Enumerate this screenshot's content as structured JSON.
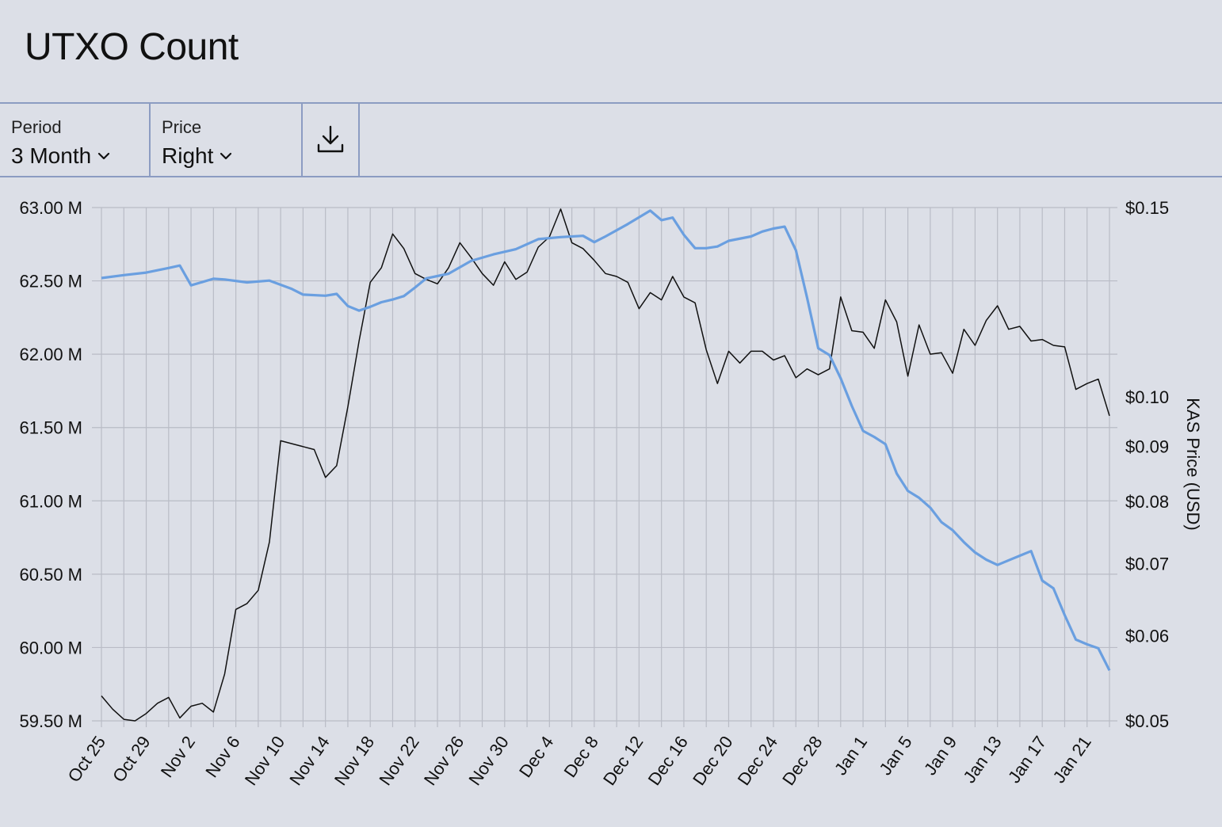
{
  "page_title": "UTXO Count",
  "controls": {
    "period": {
      "label": "Period",
      "value": "3 Month",
      "icon": "chevron-down-icon"
    },
    "price": {
      "label": "Price",
      "value": "Right",
      "icon": "chevron-down-icon"
    },
    "download": {
      "icon": "download-icon"
    }
  },
  "colors": {
    "background": "#dcdfe7",
    "border": "#8c9cc2",
    "utxo_line": "#111111",
    "price_line": "#6a9fe0",
    "grid": "#b9bcc6"
  },
  "chart_data": {
    "type": "line",
    "title": "",
    "xlabel": "",
    "ylabel": "",
    "y2label": "KAS Price (USD)",
    "x_tick_labels": [
      "Oct 25",
      "Oct 29",
      "Nov 2",
      "Nov 6",
      "Nov 10",
      "Nov 14",
      "Nov 18",
      "Nov 22",
      "Nov 26",
      "Nov 30",
      "Dec 4",
      "Dec 8",
      "Dec 12",
      "Dec 16",
      "Dec 20",
      "Dec 24",
      "Dec 28",
      "Jan 1",
      "Jan 5",
      "Jan 9",
      "Jan 13",
      "Jan 17",
      "Jan 21"
    ],
    "y_ticks": [
      "59.50 M",
      "60.00 M",
      "60.50 M",
      "61.00 M",
      "61.50 M",
      "62.00 M",
      "62.50 M",
      "63.00 M"
    ],
    "y_tick_values": [
      59.5,
      60.0,
      60.5,
      61.0,
      61.5,
      62.0,
      62.5,
      63.0
    ],
    "y_unit": "M",
    "ylim": [
      59.5,
      63.0
    ],
    "y2_scale": "log",
    "y2_ticks": [
      "$0.05",
      "$0.06",
      "$0.07",
      "$0.08",
      "$0.09",
      "$0.10",
      "$0.15"
    ],
    "y2_tick_values": [
      0.05,
      0.06,
      0.07,
      0.08,
      0.09,
      0.1,
      0.15
    ],
    "y2lim": [
      0.05,
      0.15
    ],
    "grid": true,
    "x_start": "Oct 25",
    "x_end": "Jan 23",
    "series": [
      {
        "axis": "left",
        "color": "#111111",
        "x": [
          "Oct 25",
          "Oct 26",
          "Oct 27",
          "Oct 28",
          "Oct 29",
          "Oct 30",
          "Oct 31",
          "Nov 1",
          "Nov 2",
          "Nov 3",
          "Nov 4",
          "Nov 5",
          "Nov 6",
          "Nov 7",
          "Nov 8",
          "Nov 9",
          "Nov 10",
          "Nov 11",
          "Nov 12",
          "Nov 13",
          "Nov 14",
          "Nov 15",
          "Nov 16",
          "Nov 17",
          "Nov 18",
          "Nov 19",
          "Nov 20",
          "Nov 21",
          "Nov 22",
          "Nov 23",
          "Nov 24",
          "Nov 25",
          "Nov 26",
          "Nov 27",
          "Nov 28",
          "Nov 29",
          "Nov 30",
          "Dec 1",
          "Dec 2",
          "Dec 3",
          "Dec 4",
          "Dec 5",
          "Dec 6",
          "Dec 7",
          "Dec 8",
          "Dec 9",
          "Dec 10",
          "Dec 11",
          "Dec 12",
          "Dec 13",
          "Dec 14",
          "Dec 15",
          "Dec 16",
          "Dec 17",
          "Dec 18",
          "Dec 19",
          "Dec 20",
          "Dec 21",
          "Dec 22",
          "Dec 23",
          "Dec 24",
          "Dec 25",
          "Dec 26",
          "Dec 27",
          "Dec 28",
          "Dec 29",
          "Dec 30",
          "Dec 31",
          "Jan 1",
          "Jan 2",
          "Jan 3",
          "Jan 4",
          "Jan 5",
          "Jan 6",
          "Jan 7",
          "Jan 8",
          "Jan 9",
          "Jan 10",
          "Jan 11",
          "Jan 12",
          "Jan 13",
          "Jan 14",
          "Jan 15",
          "Jan 16",
          "Jan 17",
          "Jan 18",
          "Jan 19",
          "Jan 20",
          "Jan 21",
          "Jan 22",
          "Jan 23"
        ],
        "values": [
          59.67,
          59.58,
          59.51,
          59.5,
          59.55,
          59.62,
          59.66,
          59.52,
          59.6,
          59.62,
          59.56,
          59.82,
          60.26,
          60.3,
          60.39,
          60.72,
          61.41,
          61.39,
          61.37,
          61.35,
          61.16,
          61.24,
          61.64,
          62.09,
          62.49,
          62.59,
          62.82,
          62.72,
          62.55,
          62.51,
          62.48,
          62.59,
          62.76,
          62.66,
          62.55,
          62.47,
          62.63,
          62.51,
          62.56,
          62.73,
          62.8,
          62.99,
          62.76,
          62.72,
          62.64,
          62.55,
          62.53,
          62.49,
          62.31,
          62.42,
          62.37,
          62.53,
          62.39,
          62.35,
          62.03,
          61.8,
          62.02,
          61.94,
          62.02,
          62.02,
          61.96,
          61.99,
          61.84,
          61.9,
          61.86,
          61.9,
          62.39,
          62.16,
          62.15,
          62.04,
          62.37,
          62.22,
          61.85,
          62.2,
          62.0,
          62.01,
          61.87,
          62.17,
          62.06,
          62.23,
          62.33,
          62.17,
          62.19,
          62.09,
          62.1,
          62.06,
          62.05,
          61.76,
          61.8,
          61.83,
          61.58
        ]
      },
      {
        "axis": "right",
        "color": "#6a9fe0",
        "x": [
          "Oct 25",
          "Oct 27",
          "Oct 29",
          "Oct 31",
          "Nov 1",
          "Nov 2",
          "Nov 4",
          "Nov 5",
          "Nov 7",
          "Nov 9",
          "Nov 11",
          "Nov 12",
          "Nov 14",
          "Nov 15",
          "Nov 16",
          "Nov 17",
          "Nov 18",
          "Nov 19",
          "Nov 20",
          "Nov 21",
          "Nov 22",
          "Nov 23",
          "Nov 25",
          "Nov 27",
          "Nov 29",
          "Dec 1",
          "Dec 3",
          "Dec 5",
          "Dec 7",
          "Dec 8",
          "Dec 9",
          "Dec 11",
          "Dec 13",
          "Dec 14",
          "Dec 15",
          "Dec 16",
          "Dec 17",
          "Dec 18",
          "Dec 19",
          "Dec 20",
          "Dec 22",
          "Dec 23",
          "Dec 24",
          "Dec 25",
          "Dec 26",
          "Dec 27",
          "Dec 28",
          "Dec 29",
          "Dec 30",
          "Dec 31",
          "Jan 1",
          "Jan 2",
          "Jan 3",
          "Jan 4",
          "Jan 5",
          "Jan 6",
          "Jan 7",
          "Jan 8",
          "Jan 9",
          "Jan 10",
          "Jan 11",
          "Jan 12",
          "Jan 13",
          "Jan 14",
          "Jan 15",
          "Jan 16",
          "Jan 17",
          "Jan 18",
          "Jan 19",
          "Jan 20",
          "Jan 21",
          "Jan 22",
          "Jan 23"
        ],
        "values": [
          0.129,
          0.1298,
          0.1305,
          0.1318,
          0.1325,
          0.127,
          0.1288,
          0.1286,
          0.1278,
          0.1283,
          0.126,
          0.1245,
          0.1242,
          0.1247,
          0.1215,
          0.1203,
          0.1213,
          0.1225,
          0.1232,
          0.1241,
          0.1264,
          0.1289,
          0.1302,
          0.1338,
          0.1357,
          0.1372,
          0.1402,
          0.1408,
          0.1412,
          0.1393,
          0.141,
          0.1448,
          0.149,
          0.146,
          0.1468,
          0.1415,
          0.1375,
          0.1375,
          0.138,
          0.1397,
          0.141,
          0.1425,
          0.1434,
          0.144,
          0.1369,
          0.1237,
          0.111,
          0.1094,
          0.1041,
          0.0981,
          0.093,
          0.0918,
          0.0904,
          0.0849,
          0.0818,
          0.0806,
          0.0789,
          0.0765,
          0.0752,
          0.0733,
          0.0717,
          0.0706,
          0.0698,
          0.0705,
          0.0712,
          0.0719,
          0.0675,
          0.0664,
          0.0627,
          0.0595,
          0.0589,
          0.0584,
          0.0557
        ]
      }
    ]
  }
}
